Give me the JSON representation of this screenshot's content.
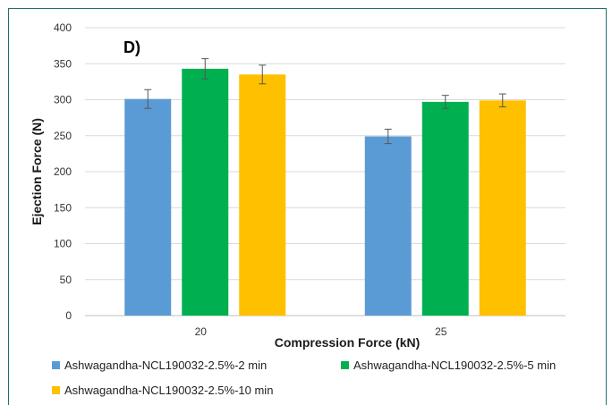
{
  "chart_data": {
    "type": "bar",
    "panel_label": "D)",
    "categories": [
      "20",
      "25"
    ],
    "xlabel": "Compression Force (kN)",
    "ylabel": "Ejection Force (N)",
    "ylim": [
      0,
      400
    ],
    "yticks": [
      0,
      50,
      100,
      150,
      200,
      250,
      300,
      350,
      400
    ],
    "grid": true,
    "legend_position": "bottom",
    "series": [
      {
        "name": "Ashwagandha-NCL190032-2.5%-2 min",
        "color": "#5b9bd5",
        "values": [
          301,
          249
        ],
        "errors": [
          13,
          10
        ]
      },
      {
        "name": "Ashwagandha-NCL190032-2.5%-5 min",
        "color": "#00b050",
        "values": [
          343,
          297
        ],
        "errors": [
          14,
          9
        ]
      },
      {
        "name": "Ashwagandha-NCL190032-2.5%-10 min",
        "color": "#ffc000",
        "values": [
          335,
          299
        ],
        "errors": [
          13,
          9
        ]
      }
    ]
  }
}
